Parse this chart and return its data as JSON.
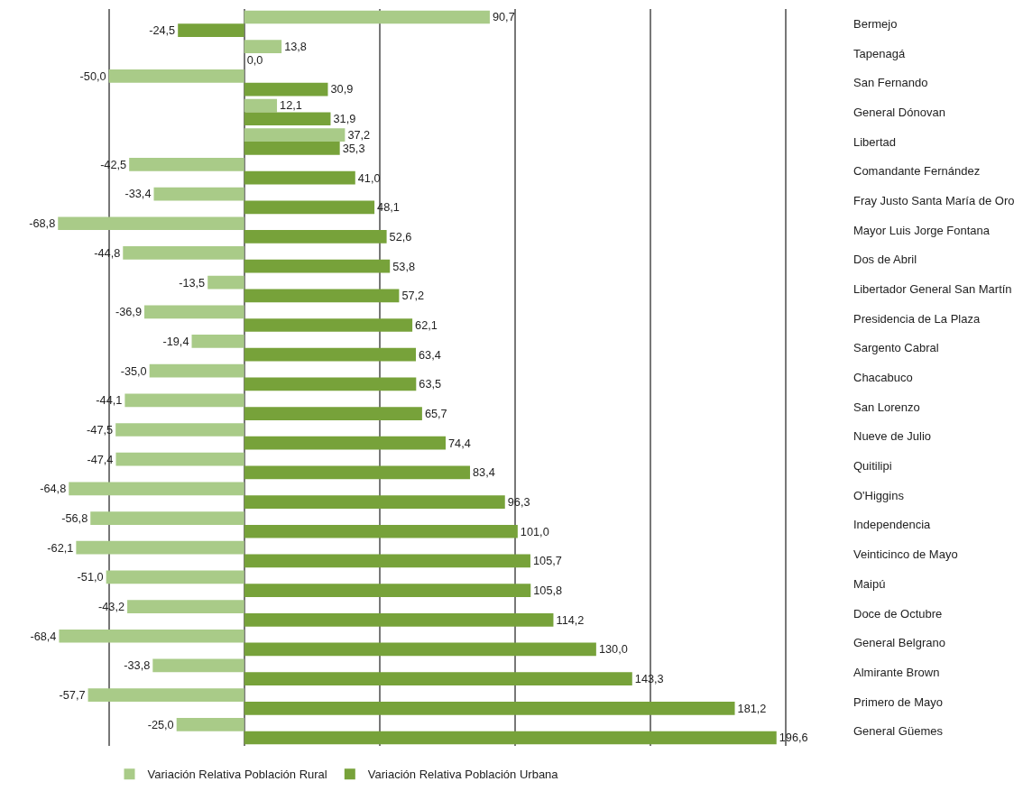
{
  "chart_data": {
    "type": "bar",
    "orientation": "horizontal",
    "categories": [
      "Bermejo",
      "Tapenagá",
      "San Fernando",
      "General Dónovan",
      "Libertad",
      "Comandante Fernández",
      "Fray Justo Santa María de Oro",
      "Mayor Luis Jorge Fontana",
      "Dos de Abril",
      "Libertador General San Martín",
      "Presidencia de La Plaza",
      "Sargento Cabral",
      "Chacabuco",
      "San Lorenzo",
      "Nueve de Julio",
      "Quitilipi",
      "O'Higgins",
      "Independencia",
      "Veinticinco de Mayo",
      "Maipú",
      "Doce de Octubre",
      "General Belgrano",
      "Almirante Brown",
      "Primero de Mayo",
      "General Güemes"
    ],
    "series": [
      {
        "name": "Variación Relativa Población Rural",
        "color": "#a9cb88",
        "values": [
          90.7,
          13.8,
          -50.0,
          12.1,
          37.2,
          -42.5,
          -33.4,
          -68.8,
          -44.8,
          -13.5,
          -36.9,
          -19.4,
          -35.0,
          -44.1,
          -47.5,
          -47.4,
          -64.8,
          -56.8,
          -62.1,
          -51.0,
          -43.2,
          -68.4,
          -33.8,
          -57.7,
          -25.0
        ],
        "value_labels": [
          "90,7",
          "13,8",
          "-50,0",
          "12,1",
          "37,2",
          "-42,5",
          "-33,4",
          "-68,8",
          "-44,8",
          "-13,5",
          "-36,9",
          "-19,4",
          "-35,0",
          "-44,1",
          "-47,5",
          "-47,4",
          "-64,8",
          "-56,8",
          "-62,1",
          "-51,0",
          "-43,2",
          "-68,4",
          "-33,8",
          "-57,7",
          "-25,0"
        ]
      },
      {
        "name": "Variación Relativa Población Urbana",
        "color": "#77a23a",
        "values": [
          -24.5,
          0.0,
          30.9,
          31.9,
          35.3,
          41.0,
          48.1,
          52.6,
          53.8,
          57.2,
          62.1,
          63.4,
          63.5,
          65.7,
          74.4,
          83.4,
          96.3,
          101.0,
          105.7,
          105.8,
          114.2,
          130.0,
          143.3,
          181.2,
          196.6
        ],
        "value_labels": [
          "-24,5",
          "0,0",
          "30,9",
          "31,9",
          "35,3",
          "41,0",
          "48,1",
          "52,6",
          "53,8",
          "57,2",
          "62,1",
          "63,4",
          "63,5",
          "65,7",
          "74,4",
          "83,4",
          "96,3",
          "101,0",
          "105,7",
          "105,8",
          "114,2",
          "130,0",
          "143,3",
          "181,2",
          "196,6"
        ]
      }
    ],
    "grid": "x",
    "legend": "bottom",
    "tick_labels": "y"
  }
}
